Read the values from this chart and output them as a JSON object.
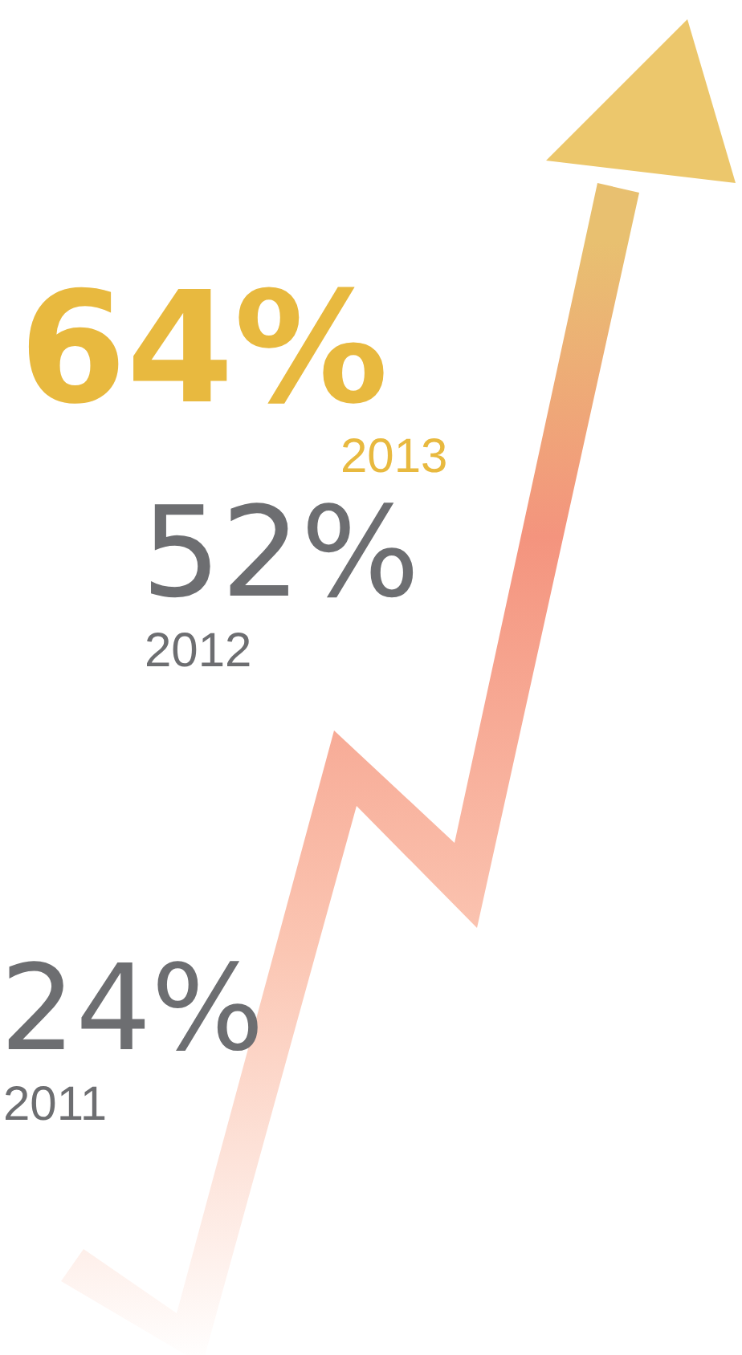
{
  "chart_data": {
    "type": "other",
    "categories": [
      "2011",
      "2012",
      "2013"
    ],
    "values": [
      24,
      52,
      64
    ],
    "value_labels": [
      "24%",
      "52%",
      "64%"
    ],
    "colors": [
      "#6d6e71",
      "#6d6e71",
      "#e8b93f"
    ]
  }
}
